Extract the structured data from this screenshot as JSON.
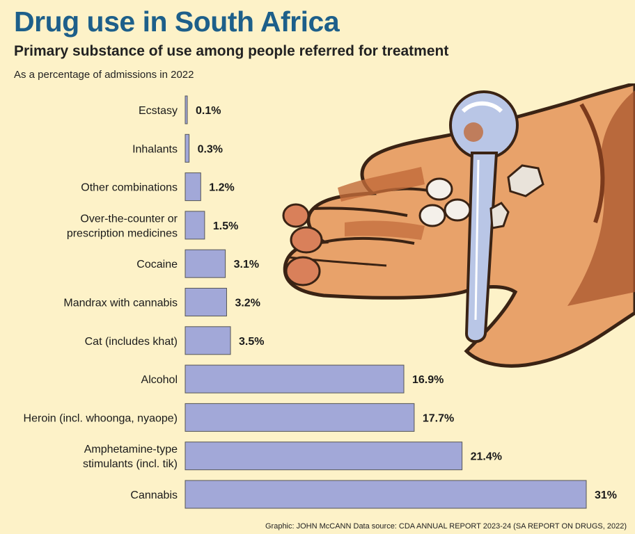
{
  "header": {
    "title": "Drug use in South Africa",
    "subtitle": "Primary substance of use among people referred for treatment",
    "note": "As a percentage of admissions in 2022"
  },
  "credit": "Graphic: JOHN McCANN  Data source: CDA ANNUAL REPORT 2023-24 (SA REPORT ON DRUGS, 2022)",
  "illustration": {
    "icon": "hand-holding-drugs-illustration",
    "colors": {
      "skin": "#e8a26a",
      "skin_dark": "#a9552e",
      "outline": "#3a2314",
      "pipe": "#b9c6e6"
    }
  },
  "chart_data": {
    "type": "bar",
    "orientation": "horizontal",
    "categories": [
      [
        "Ecstasy"
      ],
      [
        "Inhalants"
      ],
      [
        "Other combinations"
      ],
      [
        "Over-the-counter or",
        "prescription medicines"
      ],
      [
        "Cocaine"
      ],
      [
        "Mandrax with cannabis"
      ],
      [
        "Cat (includes khat)"
      ],
      [
        "Alcohol"
      ],
      [
        "Heroin (incl. whoonga, nyaope)"
      ],
      [
        "Amphetamine-type",
        "stimulants (incl. tik)"
      ],
      [
        "Cannabis"
      ]
    ],
    "values": [
      0.1,
      0.3,
      1.2,
      1.5,
      3.1,
      3.2,
      3.5,
      16.9,
      17.7,
      21.4,
      31
    ],
    "value_labels": [
      "0.1%",
      "0.3%",
      "1.2%",
      "1.5%",
      "3.1%",
      "3.2%",
      "3.5%",
      "16.9%",
      "17.7%",
      "21.4%",
      "31%"
    ],
    "unit": "%",
    "xlim": [
      0,
      31
    ],
    "grid": false,
    "legend": "none",
    "colors": {
      "bar": "#a2a8d8",
      "bar_outline": "#555555"
    }
  }
}
